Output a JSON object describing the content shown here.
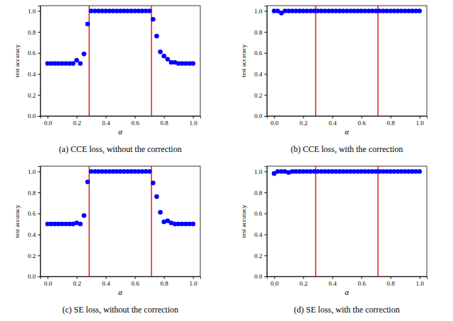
{
  "chart_data": [
    {
      "type": "scatter",
      "title": "(a) CCE loss, without the correction",
      "x_label": "α",
      "y_label": "test accuracy",
      "color": "#0000ff",
      "marker": "circle",
      "x": [
        0,
        0.025,
        0.05,
        0.075,
        0.1,
        0.125,
        0.15,
        0.175,
        0.2,
        0.225,
        0.25,
        0.275,
        0.3,
        0.325,
        0.35,
        0.375,
        0.4,
        0.425,
        0.45,
        0.475,
        0.5,
        0.525,
        0.55,
        0.575,
        0.6,
        0.625,
        0.65,
        0.675,
        0.7,
        0.725,
        0.75,
        0.775,
        0.8,
        0.825,
        0.85,
        0.875,
        0.9,
        0.925,
        0.95,
        0.975,
        1
      ],
      "values": [
        0.5,
        0.5,
        0.5,
        0.5,
        0.5,
        0.5,
        0.5,
        0.5,
        0.53,
        0.5,
        0.59,
        0.875,
        1,
        1,
        1,
        1,
        1,
        1,
        1,
        1,
        1,
        1,
        1,
        1,
        1,
        1,
        1,
        1,
        1,
        0.92,
        0.76,
        0.61,
        0.57,
        0.54,
        0.51,
        0.51,
        0.5,
        0.5,
        0.5,
        0.5,
        0.5
      ],
      "vlines": [
        0.286,
        0.714
      ],
      "xlim": [
        -0.05,
        1.05
      ],
      "ylim": [
        0,
        1.05
      ],
      "xticks": [
        {
          "value": 0,
          "label": "0.0"
        },
        {
          "value": 0.2,
          "label": "0.2"
        },
        {
          "value": 0.4,
          "label": "0.4"
        },
        {
          "value": 0.6,
          "label": "0.6"
        },
        {
          "value": 0.8,
          "label": "0.8"
        },
        {
          "value": 1,
          "label": "1.0"
        }
      ],
      "yticks": [
        {
          "value": 0,
          "label": "0.0"
        },
        {
          "value": 0.2,
          "label": "0.2"
        },
        {
          "value": 0.4,
          "label": "0.4"
        },
        {
          "value": 0.6,
          "label": "0.6"
        },
        {
          "value": 0.8,
          "label": "0.8"
        },
        {
          "value": 1,
          "label": "1.0"
        }
      ]
    },
    {
      "type": "scatter",
      "title": "(b) CCE loss, with the correction",
      "x_label": "α",
      "y_label": "test accuracy",
      "color": "#0000ff",
      "marker": "circle",
      "x": [
        0,
        0.025,
        0.05,
        0.075,
        0.1,
        0.125,
        0.15,
        0.175,
        0.2,
        0.225,
        0.25,
        0.275,
        0.3,
        0.325,
        0.35,
        0.375,
        0.4,
        0.425,
        0.45,
        0.475,
        0.5,
        0.525,
        0.55,
        0.575,
        0.6,
        0.625,
        0.65,
        0.675,
        0.7,
        0.725,
        0.75,
        0.775,
        0.8,
        0.825,
        0.85,
        0.875,
        0.9,
        0.925,
        0.95,
        0.975,
        1
      ],
      "values": [
        1,
        1,
        0.98,
        1,
        1,
        1,
        1,
        1,
        1,
        1,
        1,
        1,
        1,
        1,
        1,
        1,
        1,
        1,
        1,
        1,
        1,
        1,
        1,
        1,
        1,
        1,
        1,
        1,
        1,
        1,
        1,
        1,
        1,
        1,
        1,
        1,
        1,
        1,
        1,
        1,
        1
      ],
      "vlines": [
        0.286,
        0.714
      ],
      "xlim": [
        -0.05,
        1.05
      ],
      "ylim": [
        0,
        1.05
      ],
      "xticks": [
        {
          "value": 0,
          "label": "0.0"
        },
        {
          "value": 0.2,
          "label": "0.2"
        },
        {
          "value": 0.4,
          "label": "0.4"
        },
        {
          "value": 0.6,
          "label": "0.6"
        },
        {
          "value": 0.8,
          "label": "0.8"
        },
        {
          "value": 1,
          "label": "1.0"
        }
      ],
      "yticks": [
        {
          "value": 0,
          "label": "0.0"
        },
        {
          "value": 0.2,
          "label": "0.2"
        },
        {
          "value": 0.4,
          "label": "0.4"
        },
        {
          "value": 0.6,
          "label": "0.6"
        },
        {
          "value": 0.8,
          "label": "0.8"
        },
        {
          "value": 1,
          "label": "1.0"
        }
      ]
    },
    {
      "type": "scatter",
      "title": "(c) SE loss, without the correction",
      "x_label": "α",
      "y_label": "test accuracy",
      "color": "#0000ff",
      "marker": "circle",
      "x": [
        0,
        0.025,
        0.05,
        0.075,
        0.1,
        0.125,
        0.15,
        0.175,
        0.2,
        0.225,
        0.25,
        0.275,
        0.3,
        0.325,
        0.35,
        0.375,
        0.4,
        0.425,
        0.45,
        0.475,
        0.5,
        0.525,
        0.55,
        0.575,
        0.6,
        0.625,
        0.65,
        0.675,
        0.7,
        0.725,
        0.75,
        0.775,
        0.8,
        0.825,
        0.85,
        0.875,
        0.9,
        0.925,
        0.95,
        0.975,
        1
      ],
      "values": [
        0.5,
        0.5,
        0.5,
        0.5,
        0.5,
        0.5,
        0.5,
        0.5,
        0.51,
        0.5,
        0.58,
        0.9,
        1,
        1,
        1,
        1,
        1,
        1,
        1,
        1,
        1,
        1,
        1,
        1,
        1,
        1,
        1,
        1,
        1,
        0.89,
        0.76,
        0.61,
        0.52,
        0.53,
        0.51,
        0.5,
        0.5,
        0.5,
        0.5,
        0.5,
        0.5
      ],
      "vlines": [
        0.286,
        0.714
      ],
      "xlim": [
        -0.05,
        1.05
      ],
      "ylim": [
        0,
        1.05
      ],
      "xticks": [
        {
          "value": 0,
          "label": "0.0"
        },
        {
          "value": 0.2,
          "label": "0.2"
        },
        {
          "value": 0.4,
          "label": "0.4"
        },
        {
          "value": 0.6,
          "label": "0.6"
        },
        {
          "value": 0.8,
          "label": "0.8"
        },
        {
          "value": 1,
          "label": "1.0"
        }
      ],
      "yticks": [
        {
          "value": 0,
          "label": "0.0"
        },
        {
          "value": 0.2,
          "label": "0.2"
        },
        {
          "value": 0.4,
          "label": "0.4"
        },
        {
          "value": 0.6,
          "label": "0.6"
        },
        {
          "value": 0.8,
          "label": "0.8"
        },
        {
          "value": 1,
          "label": "1.0"
        }
      ]
    },
    {
      "type": "scatter",
      "title": "(d) SE loss, with the correction",
      "x_label": "α",
      "y_label": "test accuracy",
      "color": "#0000ff",
      "marker": "circle",
      "x": [
        0,
        0.025,
        0.05,
        0.075,
        0.1,
        0.125,
        0.15,
        0.175,
        0.2,
        0.225,
        0.25,
        0.275,
        0.3,
        0.325,
        0.35,
        0.375,
        0.4,
        0.425,
        0.45,
        0.475,
        0.5,
        0.525,
        0.55,
        0.575,
        0.6,
        0.625,
        0.65,
        0.675,
        0.7,
        0.725,
        0.75,
        0.775,
        0.8,
        0.825,
        0.85,
        0.875,
        0.9,
        0.925,
        0.95,
        0.975,
        1
      ],
      "values": [
        0.98,
        1,
        1,
        1,
        0.99,
        1,
        1,
        1,
        1,
        1,
        1,
        1,
        1,
        1,
        1,
        1,
        1,
        1,
        1,
        1,
        1,
        1,
        1,
        1,
        1,
        1,
        1,
        1,
        1,
        1,
        1,
        1,
        1,
        1,
        1,
        1,
        1,
        1,
        1,
        1,
        1
      ],
      "vlines": [
        0.286,
        0.714
      ],
      "xlim": [
        -0.05,
        1.05
      ],
      "ylim": [
        0,
        1.05
      ],
      "xticks": [
        {
          "value": 0,
          "label": "0.0"
        },
        {
          "value": 0.2,
          "label": "0.2"
        },
        {
          "value": 0.4,
          "label": "0.4"
        },
        {
          "value": 0.6,
          "label": "0.6"
        },
        {
          "value": 0.8,
          "label": "0.8"
        },
        {
          "value": 1,
          "label": "1.0"
        }
      ],
      "yticks": [
        {
          "value": 0,
          "label": "0.0"
        },
        {
          "value": 0.2,
          "label": "0.2"
        },
        {
          "value": 0.4,
          "label": "0.4"
        },
        {
          "value": 0.6,
          "label": "0.6"
        },
        {
          "value": 0.8,
          "label": "0.8"
        },
        {
          "value": 1,
          "label": "1.0"
        }
      ]
    }
  ]
}
